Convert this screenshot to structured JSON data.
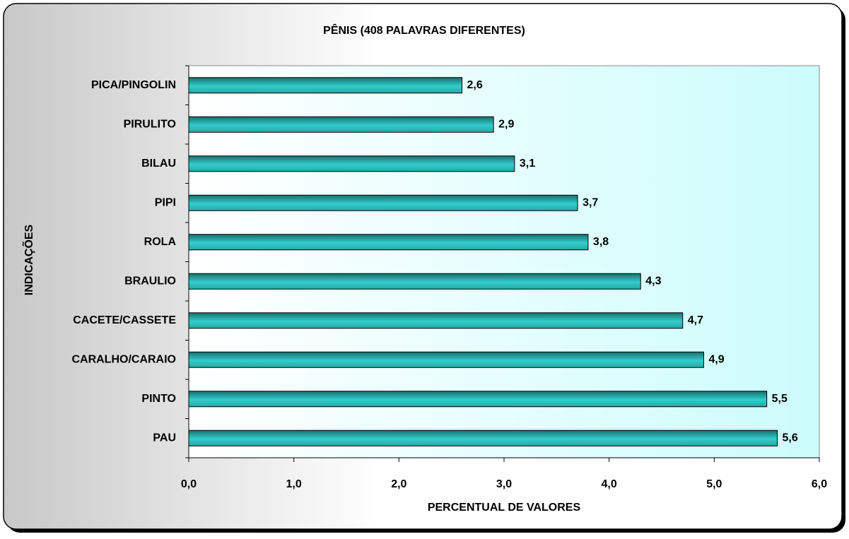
{
  "chart_data": {
    "type": "bar",
    "orientation": "horizontal",
    "title": "PÊNIS  (408 PALAVRAS DIFERENTES)",
    "xlabel": "PERCENTUAL DE VALORES",
    "ylabel": "INDICAÇÕES",
    "categories": [
      "PICA/PINGOLIN",
      "PIRULITO",
      "BILAU",
      "PIPI",
      "ROLA",
      "BRAULIO",
      "CACETE/CASSETE",
      "CARALHO/CARAIO",
      "PINTO",
      "PAU"
    ],
    "values": [
      2.6,
      2.9,
      3.1,
      3.7,
      3.8,
      4.3,
      4.7,
      4.9,
      5.5,
      5.6
    ],
    "value_labels": [
      "2,6",
      "2,9",
      "3,1",
      "3,7",
      "3,8",
      "4,3",
      "4,7",
      "4,9",
      "5,5",
      "5,6"
    ],
    "color": "#33cccc",
    "xlim": [
      0,
      6
    ],
    "xticks": [
      {
        "value": 0,
        "label": "0,0"
      },
      {
        "value": 1,
        "label": "1,0"
      },
      {
        "value": 2,
        "label": "2,0"
      },
      {
        "value": 3,
        "label": "3,0"
      },
      {
        "value": 4,
        "label": "4,0"
      },
      {
        "value": 5,
        "label": "5,0"
      },
      {
        "value": 6,
        "label": "6,0"
      }
    ],
    "grid": false
  }
}
